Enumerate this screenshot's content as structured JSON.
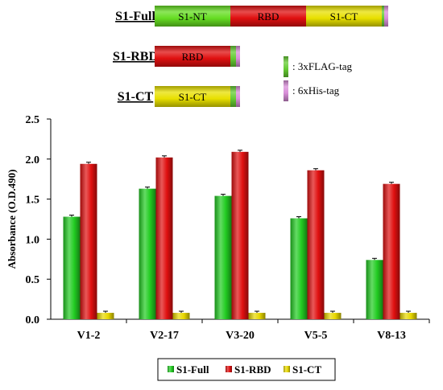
{
  "constructs": [
    {
      "name": "S1-Full",
      "segments": [
        {
          "label": "S1-NT",
          "color": "#66dd22"
        },
        {
          "label": "RBD",
          "color": "#e01010"
        },
        {
          "label": "S1-CT",
          "color": "#e8e000"
        },
        {
          "label": "",
          "color": "#66cc33"
        },
        {
          "label": "",
          "color": "#d98fd9"
        }
      ]
    },
    {
      "name": "S1-RBD",
      "segments": [
        {
          "label": "RBD",
          "color": "#e01010"
        },
        {
          "label": "",
          "color": "#66cc33"
        },
        {
          "label": "",
          "color": "#d98fd9"
        }
      ]
    },
    {
      "name": "S1-CT",
      "segments": [
        {
          "label": "S1-CT",
          "color": "#e8e000"
        },
        {
          "label": "",
          "color": "#66cc33"
        },
        {
          "label": "",
          "color": "#d98fd9"
        }
      ]
    }
  ],
  "tag_legend": [
    {
      "label": ": 3xFLAG-tag",
      "color": "#66cc33"
    },
    {
      "label": ": 6xHis-tag",
      "color": "#d98fd9"
    }
  ],
  "chart_data": {
    "type": "bar",
    "title": "",
    "xlabel": "",
    "ylabel": "Absorbance  (O.D.490)",
    "categories": [
      "V1-2",
      "V2-17",
      "V3-20",
      "V5-5",
      "V8-13"
    ],
    "ylim": [
      0,
      2.5
    ],
    "yticks": [
      "0.0",
      "0.5",
      "1.0",
      "1.5",
      "2.0",
      "2.5"
    ],
    "grid": false,
    "legend_position": "bottom",
    "series": [
      {
        "name": "S1-Full",
        "color": "#22cc22",
        "values": [
          1.28,
          1.63,
          1.54,
          1.26,
          0.74
        ]
      },
      {
        "name": "S1-RBD",
        "color": "#e01010",
        "values": [
          1.94,
          2.02,
          2.09,
          1.86,
          1.69
        ]
      },
      {
        "name": "S1-CT",
        "color": "#e8d800",
        "values": [
          0.08,
          0.08,
          0.08,
          0.08,
          0.08
        ]
      }
    ]
  }
}
